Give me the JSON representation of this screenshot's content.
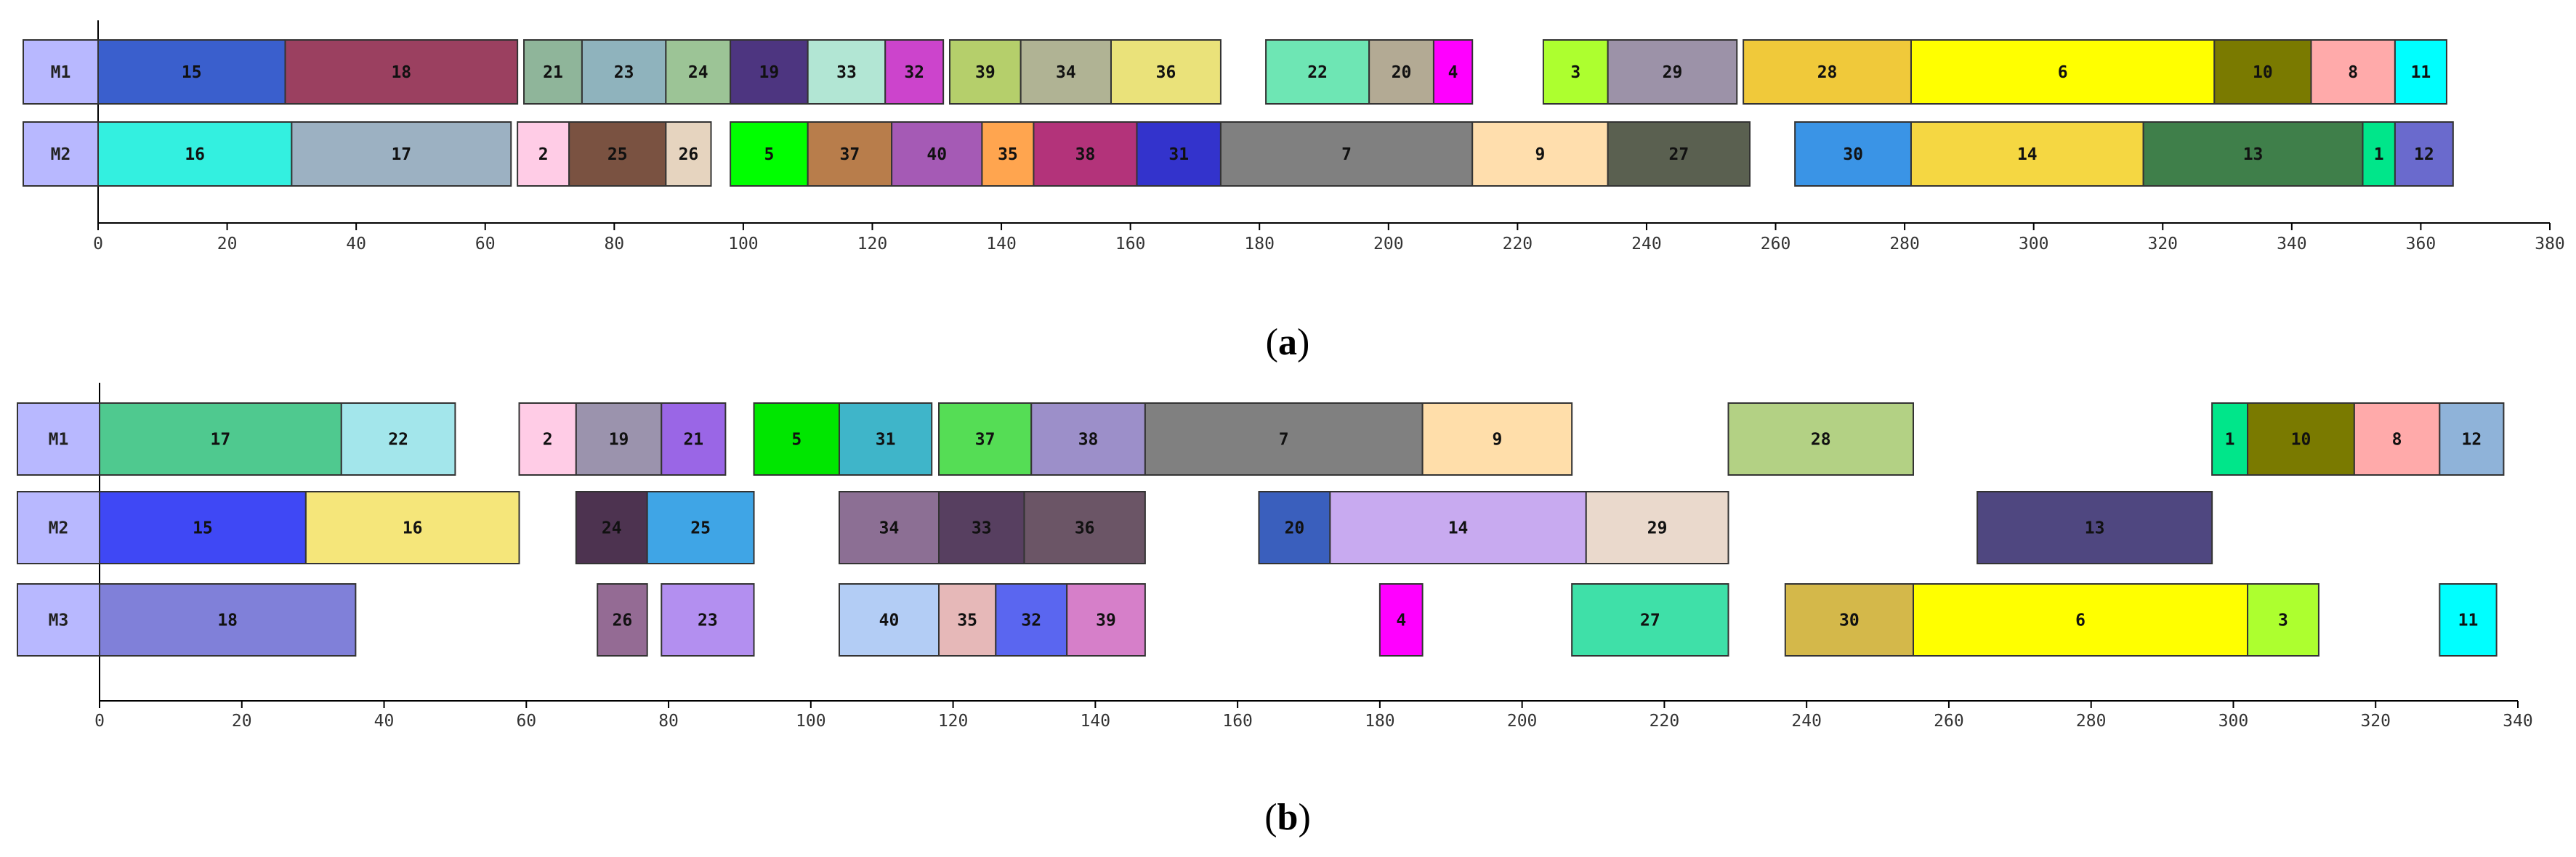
{
  "chart_data": [
    {
      "type": "gantt",
      "caption": "(a)",
      "xlim": [
        0,
        380
      ],
      "ticks": [
        0,
        20,
        40,
        60,
        80,
        100,
        120,
        140,
        160,
        180,
        200,
        220,
        240,
        260,
        280,
        300,
        320,
        340,
        360,
        380
      ],
      "tick_labels": [
        "0",
        "20",
        "40",
        "60",
        "80",
        "100",
        "120",
        "140",
        "160",
        "180",
        "200",
        "220",
        "240",
        "260",
        "280",
        "300",
        "320",
        "340",
        "360",
        "380"
      ],
      "machines": [
        {
          "name": "M1",
          "color": "#b8b8ff",
          "tasks": [
            {
              "label": "15",
              "start": 0,
              "end": 29,
              "color": "#3a5fcd"
            },
            {
              "label": "18",
              "start": 29,
              "end": 65,
              "color": "#9b4060"
            },
            {
              "label": "21",
              "start": 66,
              "end": 75,
              "color": "#8fb59a"
            },
            {
              "label": "23",
              "start": 75,
              "end": 88,
              "color": "#8fb3bd"
            },
            {
              "label": "24",
              "start": 88,
              "end": 98,
              "color": "#9cc496"
            },
            {
              "label": "19",
              "start": 98,
              "end": 110,
              "color": "#4d3580"
            },
            {
              "label": "33",
              "start": 110,
              "end": 122,
              "color": "#b2e6d4"
            },
            {
              "label": "32",
              "start": 122,
              "end": 131,
              "color": "#cc44cc"
            },
            {
              "label": "39",
              "start": 132,
              "end": 143,
              "color": "#b5cf6b"
            },
            {
              "label": "34",
              "start": 143,
              "end": 157,
              "color": "#b0b394"
            },
            {
              "label": "36",
              "start": 157,
              "end": 174,
              "color": "#eae27a"
            },
            {
              "label": "22",
              "start": 181,
              "end": 197,
              "color": "#6ee6b4"
            },
            {
              "label": "20",
              "start": 197,
              "end": 207,
              "color": "#b3aa94"
            },
            {
              "label": "4",
              "start": 207,
              "end": 213,
              "color": "#ff00ff"
            },
            {
              "label": "3",
              "start": 224,
              "end": 234,
              "color": "#adff2f"
            },
            {
              "label": "29",
              "start": 234,
              "end": 254,
              "color": "#9c92a8"
            },
            {
              "label": "28",
              "start": 255,
              "end": 281,
              "color": "#f0c93a"
            },
            {
              "label": "6",
              "start": 281,
              "end": 328,
              "color": "#ffff00"
            },
            {
              "label": "10",
              "start": 328,
              "end": 343,
              "color": "#7a7a00"
            },
            {
              "label": "8",
              "start": 343,
              "end": 356,
              "color": "#ffaaaa"
            },
            {
              "label": "11",
              "start": 356,
              "end": 364,
              "color": "#00ffff"
            }
          ]
        },
        {
          "name": "M2",
          "color": "#b8b8ff",
          "tasks": [
            {
              "label": "16",
              "start": 0,
              "end": 30,
              "color": "#33f0e0"
            },
            {
              "label": "17",
              "start": 30,
              "end": 64,
              "color": "#9cb1c2"
            },
            {
              "label": "2",
              "start": 65,
              "end": 73,
              "color": "#ffcce6"
            },
            {
              "label": "25",
              "start": 73,
              "end": 88,
              "color": "#7a5241"
            },
            {
              "label": "26",
              "start": 88,
              "end": 95,
              "color": "#e6d4bf"
            },
            {
              "label": "5",
              "start": 98,
              "end": 110,
              "color": "#00ff00"
            },
            {
              "label": "37",
              "start": 110,
              "end": 123,
              "color": "#b87d4b"
            },
            {
              "label": "40",
              "start": 123,
              "end": 137,
              "color": "#a55ab5"
            },
            {
              "label": "35",
              "start": 137,
              "end": 145,
              "color": "#ffa54f"
            },
            {
              "label": "38",
              "start": 145,
              "end": 161,
              "color": "#b3337a"
            },
            {
              "label": "31",
              "start": 161,
              "end": 174,
              "color": "#3333cc"
            },
            {
              "label": "7",
              "start": 174,
              "end": 213,
              "color": "#808080"
            },
            {
              "label": "9",
              "start": 213,
              "end": 234,
              "color": "#ffdead"
            },
            {
              "label": "27",
              "start": 234,
              "end": 256,
              "color": "#5a6050"
            },
            {
              "label": "30",
              "start": 263,
              "end": 281,
              "color": "#3a94e6"
            },
            {
              "label": "14",
              "start": 281,
              "end": 317,
              "color": "#f5d742"
            },
            {
              "label": "13",
              "start": 317,
              "end": 351,
              "color": "#3f7f4a"
            },
            {
              "label": "1",
              "start": 351,
              "end": 356,
              "color": "#00e68a"
            },
            {
              "label": "12",
              "start": 356,
              "end": 365,
              "color": "#6a6acd"
            }
          ]
        }
      ]
    },
    {
      "type": "gantt",
      "caption": "(b)",
      "xlim": [
        0,
        340
      ],
      "ticks": [
        0,
        20,
        40,
        60,
        80,
        100,
        120,
        140,
        160,
        180,
        200,
        220,
        240,
        260,
        280,
        300,
        320,
        340
      ],
      "tick_labels": [
        "0",
        "20",
        "40",
        "60",
        "80",
        "100",
        "120",
        "140",
        "160",
        "180",
        "200",
        "220",
        "240",
        "260",
        "280",
        "300",
        "320",
        "340"
      ],
      "machines": [
        {
          "name": "M1",
          "color": "#b8b8ff",
          "tasks": [
            {
              "label": "17",
              "start": 0,
              "end": 34,
              "color": "#4fc98f"
            },
            {
              "label": "22",
              "start": 34,
              "end": 50,
              "color": "#a3e6eb"
            },
            {
              "label": "2",
              "start": 59,
              "end": 67,
              "color": "#ffcce6"
            },
            {
              "label": "19",
              "start": 67,
              "end": 79,
              "color": "#9b93ad"
            },
            {
              "label": "21",
              "start": 79,
              "end": 88,
              "color": "#9a66e6"
            },
            {
              "label": "5",
              "start": 92,
              "end": 104,
              "color": "#00e600"
            },
            {
              "label": "31",
              "start": 104,
              "end": 117,
              "color": "#3fb5c9"
            },
            {
              "label": "37",
              "start": 118,
              "end": 131,
              "color": "#55dd55"
            },
            {
              "label": "38",
              "start": 131,
              "end": 147,
              "color": "#9c8fc9"
            },
            {
              "label": "7",
              "start": 147,
              "end": 186,
              "color": "#808080"
            },
            {
              "label": "9",
              "start": 186,
              "end": 207,
              "color": "#ffdeaa"
            },
            {
              "label": "28",
              "start": 229,
              "end": 255,
              "color": "#b3d184"
            },
            {
              "label": "1",
              "start": 297,
              "end": 302,
              "color": "#00e68a"
            },
            {
              "label": "10",
              "start": 302,
              "end": 317,
              "color": "#7a7a00"
            },
            {
              "label": "8",
              "start": 317,
              "end": 329,
              "color": "#ffaaaa"
            },
            {
              "label": "12",
              "start": 329,
              "end": 338,
              "color": "#8fb3d9"
            }
          ]
        },
        {
          "name": "M2",
          "color": "#b8b8ff",
          "tasks": [
            {
              "label": "15",
              "start": 0,
              "end": 29,
              "color": "#3f48f5"
            },
            {
              "label": "16",
              "start": 29,
              "end": 59,
              "color": "#f5e67a"
            },
            {
              "label": "24",
              "start": 67,
              "end": 77,
              "color": "#4d3350"
            },
            {
              "label": "25",
              "start": 77,
              "end": 92,
              "color": "#3fa5e6"
            },
            {
              "label": "34",
              "start": 104,
              "end": 118,
              "color": "#8c6f94"
            },
            {
              "label": "33",
              "start": 118,
              "end": 130,
              "color": "#573f60"
            },
            {
              "label": "36",
              "start": 130,
              "end": 147,
              "color": "#6b5566"
            },
            {
              "label": "20",
              "start": 163,
              "end": 173,
              "color": "#3a5fbd"
            },
            {
              "label": "14",
              "start": 173,
              "end": 209,
              "color": "#c8aaf0"
            },
            {
              "label": "29",
              "start": 209,
              "end": 229,
              "color": "#ead9cc"
            },
            {
              "label": "13",
              "start": 264,
              "end": 297,
              "color": "#4f4780"
            }
          ]
        },
        {
          "name": "M3",
          "color": "#b8b8ff",
          "tasks": [
            {
              "label": "18",
              "start": 0,
              "end": 36,
              "color": "#8080d9"
            },
            {
              "label": "26",
              "start": 70,
              "end": 77,
              "color": "#946b94"
            },
            {
              "label": "23",
              "start": 79,
              "end": 92,
              "color": "#b38ff0"
            },
            {
              "label": "40",
              "start": 104,
              "end": 118,
              "color": "#b3cdf5"
            },
            {
              "label": "35",
              "start": 118,
              "end": 126,
              "color": "#e6b8b8"
            },
            {
              "label": "32",
              "start": 126,
              "end": 136,
              "color": "#5a66f0"
            },
            {
              "label": "39",
              "start": 136,
              "end": 147,
              "color": "#d67fc9"
            },
            {
              "label": "4",
              "start": 180,
              "end": 186,
              "color": "#ff00ff"
            },
            {
              "label": "27",
              "start": 207,
              "end": 229,
              "color": "#3fe0a8"
            },
            {
              "label": "30",
              "start": 237,
              "end": 255,
              "color": "#d4b84a"
            },
            {
              "label": "6",
              "start": 255,
              "end": 302,
              "color": "#ffff00"
            },
            {
              "label": "3",
              "start": 302,
              "end": 312,
              "color": "#adff2f"
            },
            {
              "label": "11",
              "start": 329,
              "end": 337,
              "color": "#00ffff"
            }
          ]
        }
      ]
    }
  ]
}
